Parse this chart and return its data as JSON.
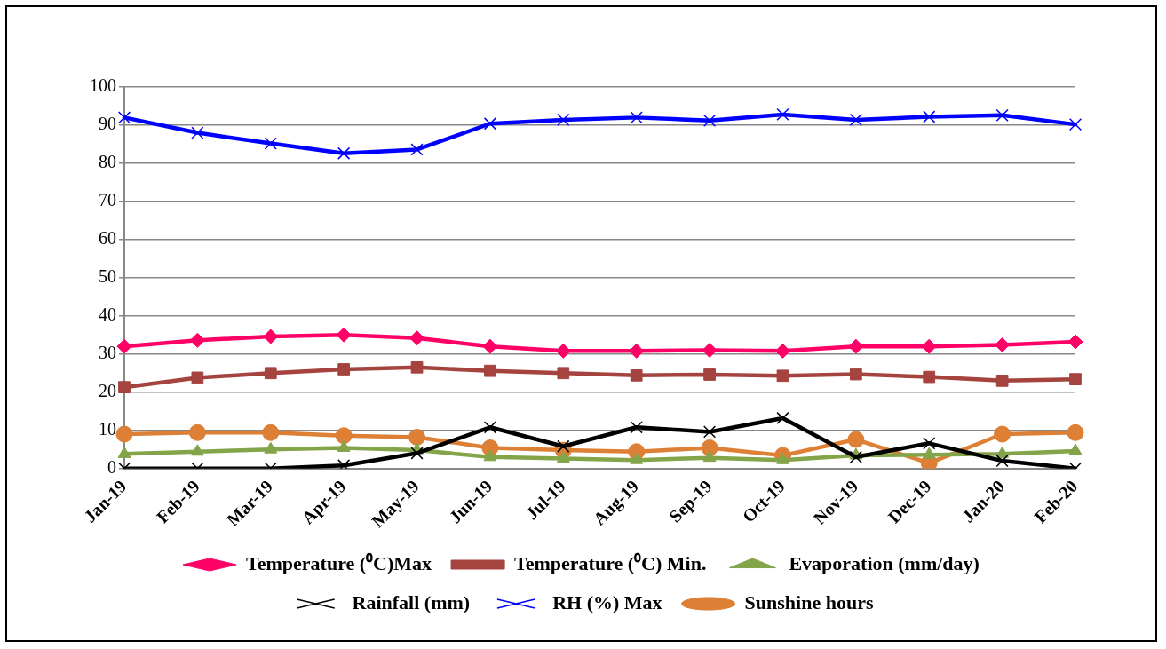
{
  "chart_data": {
    "type": "line",
    "categories": [
      "Jan-19",
      "Feb-19",
      "Mar-19",
      "Apr-19",
      "May-19",
      "Jun-19",
      "Jul-19",
      "Aug-19",
      "Sep-19",
      "Oct-19",
      "Nov-19",
      "Dec-19",
      "Jan-20",
      "Feb-20"
    ],
    "series": [
      {
        "name": "Temperature (⁰C)Max",
        "color": "#ff0066",
        "marker": "diamond",
        "values": [
          32,
          33.6,
          34.6,
          35,
          34.2,
          32,
          30.8,
          30.8,
          31,
          30.8,
          32,
          32,
          32.4,
          33.2
        ]
      },
      {
        "name": "Temperature (⁰C) Min.",
        "color": "#a5433f",
        "marker": "square",
        "values": [
          21.3,
          23.8,
          25,
          26,
          26.5,
          25.6,
          25,
          24.4,
          24.6,
          24.3,
          24.7,
          24,
          23,
          23.4
        ]
      },
      {
        "name": "Evaporation (mm/day)",
        "color": "#84a44a",
        "marker": "triangle",
        "values": [
          3.8,
          4.4,
          5,
          5.4,
          4.8,
          3,
          2.6,
          2.2,
          2.8,
          2.2,
          3.4,
          3.6,
          3.8,
          4.6
        ]
      },
      {
        "name": "Rainfall (mm)",
        "color": "#000000",
        "marker": "cross",
        "values": [
          0,
          0,
          0,
          0.8,
          4,
          10.8,
          5.8,
          10.8,
          9.6,
          13.2,
          3,
          6.6,
          2,
          0
        ]
      },
      {
        "name": "RH (%) Max",
        "color": "#0000ff",
        "marker": "cross",
        "values": [
          92,
          88,
          85.2,
          82.6,
          83.6,
          90.4,
          91.4,
          92,
          91.2,
          92.8,
          91.4,
          92.2,
          92.6,
          90.2
        ]
      },
      {
        "name": "Sunshine hours",
        "color": "#dd8035",
        "marker": "circle",
        "values": [
          9,
          9.4,
          9.4,
          8.6,
          8.2,
          5.4,
          4.8,
          4.4,
          5.4,
          3.4,
          7.6,
          1.4,
          9,
          9.4
        ]
      }
    ],
    "ylim": [
      0,
      100
    ],
    "yticks": [
      0,
      10,
      20,
      30,
      40,
      50,
      60,
      70,
      80,
      90,
      100
    ],
    "grid": "y",
    "legend": "bottom"
  }
}
